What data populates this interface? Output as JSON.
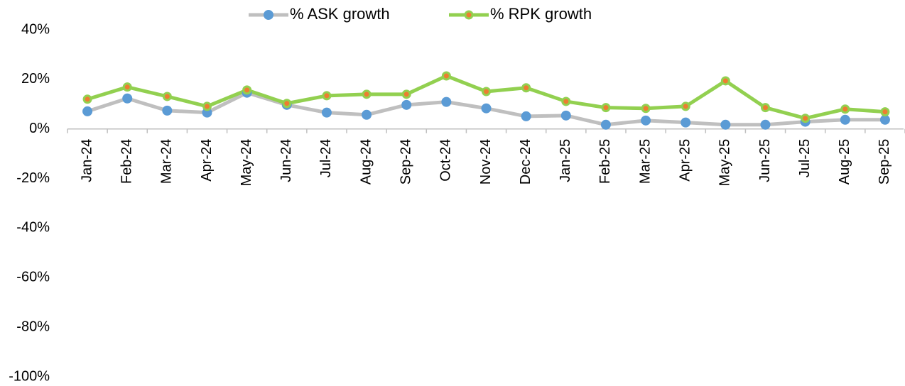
{
  "chart_data": {
    "type": "line",
    "categories": [
      "Jan-24",
      "Feb-24",
      "Mar-24",
      "Apr-24",
      "May-24",
      "Jun-24",
      "Jul-24",
      "Aug-24",
      "Sep-24",
      "Oct-24",
      "Nov-24",
      "Dec-24",
      "Jan-25",
      "Feb-25",
      "Mar-25",
      "Apr-25",
      "May-25",
      "Jun-25",
      "Jul-25",
      "Aug-25",
      "Sep-25"
    ],
    "series": [
      {
        "name": "% ASK growth",
        "color": "#bfbfbf",
        "marker_color": "#5b9bd5",
        "values": [
          7.1,
          12.3,
          7.4,
          6.6,
          14.6,
          9.7,
          6.6,
          5.7,
          9.7,
          10.9,
          8.3,
          5.1,
          5.4,
          1.7,
          3.4,
          2.6,
          1.7,
          1.7,
          2.9,
          3.7,
          3.7
        ]
      },
      {
        "name": "% RPK growth",
        "color": "#92d050",
        "marker_color": "#ed7d31",
        "values": [
          12.0,
          16.9,
          13.1,
          9.1,
          15.7,
          10.3,
          13.4,
          14.0,
          14.0,
          21.4,
          15.1,
          16.6,
          11.1,
          8.6,
          8.3,
          9.1,
          19.4,
          8.6,
          4.3,
          8.0,
          6.9
        ]
      }
    ],
    "ylim": [
      -100,
      40
    ],
    "yticks": [
      {
        "value": 40,
        "label": "40%"
      },
      {
        "value": 20,
        "label": "20%"
      },
      {
        "value": 0,
        "label": "0%"
      },
      {
        "value": -20,
        "label": "-20%"
      },
      {
        "value": -40,
        "label": "-40%"
      },
      {
        "value": -60,
        "label": "-60%"
      },
      {
        "value": -80,
        "label": "-80%"
      },
      {
        "value": -100,
        "label": "-100%"
      }
    ],
    "legend": "top"
  }
}
